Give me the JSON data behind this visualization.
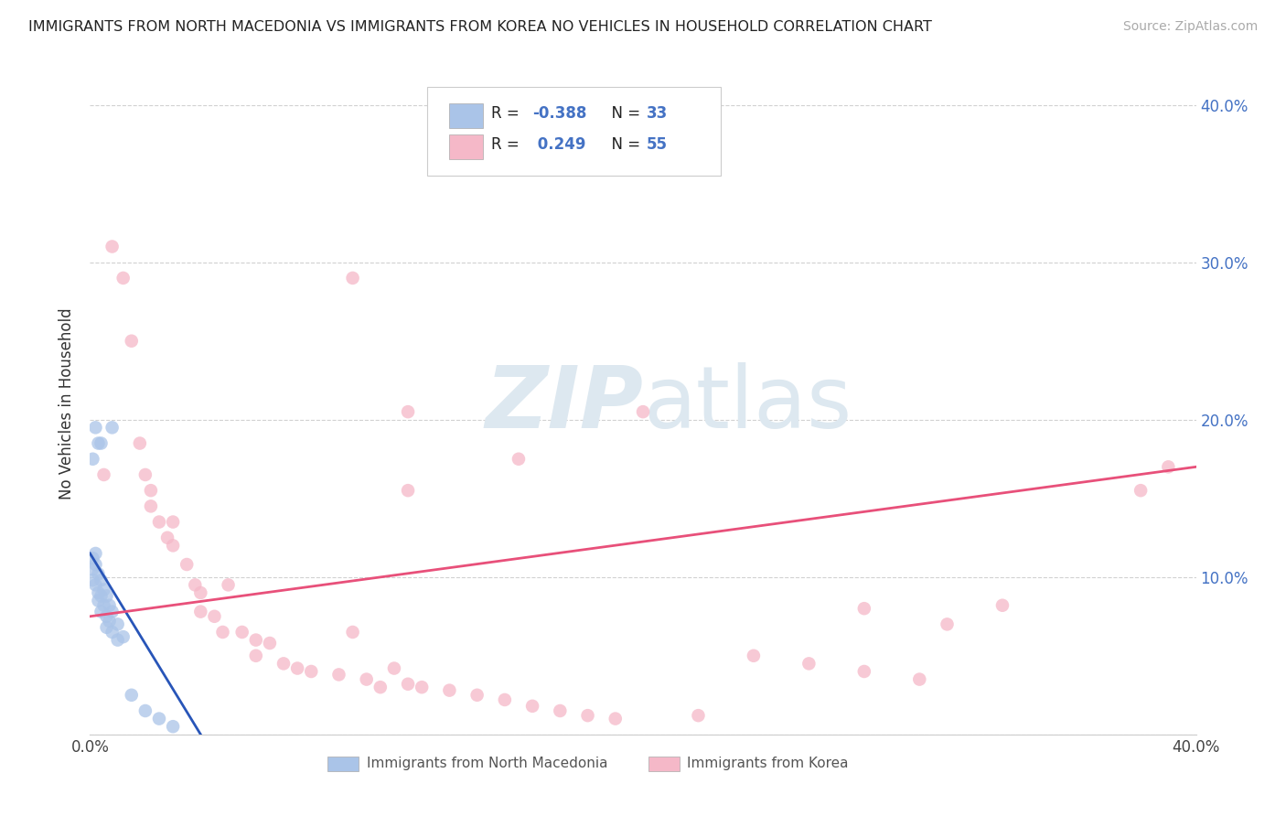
{
  "title": "IMMIGRANTS FROM NORTH MACEDONIA VS IMMIGRANTS FROM KOREA NO VEHICLES IN HOUSEHOLD CORRELATION CHART",
  "source": "Source: ZipAtlas.com",
  "ylabel": "No Vehicles in Household",
  "xlim": [
    0.0,
    0.4
  ],
  "ylim": [
    0.0,
    0.42
  ],
  "yticks": [
    0.0,
    0.1,
    0.2,
    0.3,
    0.4
  ],
  "ytick_labels_right": [
    "",
    "10.0%",
    "20.0%",
    "30.0%",
    "40.0%"
  ],
  "xticks": [
    0.0,
    0.1,
    0.2,
    0.3,
    0.4
  ],
  "xtick_labels": [
    "0.0%",
    "",
    "",
    "",
    "40.0%"
  ],
  "legend_r_blue": "R = -0.388",
  "legend_n_blue": "N = 33",
  "legend_r_pink": "R =  0.249",
  "legend_n_pink": "N = 55",
  "blue_fill_color": "#aac4e8",
  "pink_fill_color": "#f5b8c8",
  "blue_line_color": "#2855b8",
  "pink_line_color": "#e8507a",
  "legend_text_color": "#4472c4",
  "watermark_color": "#dde8f0",
  "blue_scatter": [
    [
      0.001,
      0.112
    ],
    [
      0.001,
      0.105
    ],
    [
      0.001,
      0.098
    ],
    [
      0.002,
      0.115
    ],
    [
      0.002,
      0.108
    ],
    [
      0.002,
      0.095
    ],
    [
      0.003,
      0.102
    ],
    [
      0.003,
      0.09
    ],
    [
      0.003,
      0.085
    ],
    [
      0.004,
      0.098
    ],
    [
      0.004,
      0.088
    ],
    [
      0.004,
      0.078
    ],
    [
      0.005,
      0.092
    ],
    [
      0.005,
      0.082
    ],
    [
      0.006,
      0.088
    ],
    [
      0.006,
      0.075
    ],
    [
      0.006,
      0.068
    ],
    [
      0.007,
      0.082
    ],
    [
      0.007,
      0.072
    ],
    [
      0.008,
      0.078
    ],
    [
      0.008,
      0.065
    ],
    [
      0.01,
      0.07
    ],
    [
      0.01,
      0.06
    ],
    [
      0.012,
      0.062
    ],
    [
      0.002,
      0.195
    ],
    [
      0.003,
      0.185
    ],
    [
      0.001,
      0.175
    ],
    [
      0.015,
      0.025
    ],
    [
      0.02,
      0.015
    ],
    [
      0.008,
      0.195
    ],
    [
      0.025,
      0.01
    ],
    [
      0.03,
      0.005
    ],
    [
      0.004,
      0.185
    ]
  ],
  "pink_scatter": [
    [
      0.005,
      0.165
    ],
    [
      0.008,
      0.31
    ],
    [
      0.012,
      0.29
    ],
    [
      0.015,
      0.25
    ],
    [
      0.018,
      0.185
    ],
    [
      0.02,
      0.165
    ],
    [
      0.022,
      0.155
    ],
    [
      0.022,
      0.145
    ],
    [
      0.025,
      0.135
    ],
    [
      0.028,
      0.125
    ],
    [
      0.03,
      0.135
    ],
    [
      0.03,
      0.12
    ],
    [
      0.035,
      0.108
    ],
    [
      0.038,
      0.095
    ],
    [
      0.04,
      0.09
    ],
    [
      0.04,
      0.078
    ],
    [
      0.045,
      0.075
    ],
    [
      0.048,
      0.065
    ],
    [
      0.05,
      0.095
    ],
    [
      0.055,
      0.065
    ],
    [
      0.06,
      0.06
    ],
    [
      0.06,
      0.05
    ],
    [
      0.065,
      0.058
    ],
    [
      0.07,
      0.045
    ],
    [
      0.075,
      0.042
    ],
    [
      0.08,
      0.04
    ],
    [
      0.09,
      0.038
    ],
    [
      0.095,
      0.065
    ],
    [
      0.1,
      0.035
    ],
    [
      0.105,
      0.03
    ],
    [
      0.11,
      0.042
    ],
    [
      0.115,
      0.032
    ],
    [
      0.12,
      0.03
    ],
    [
      0.13,
      0.028
    ],
    [
      0.14,
      0.025
    ],
    [
      0.15,
      0.022
    ],
    [
      0.16,
      0.018
    ],
    [
      0.17,
      0.015
    ],
    [
      0.18,
      0.012
    ],
    [
      0.19,
      0.01
    ],
    [
      0.2,
      0.205
    ],
    [
      0.22,
      0.012
    ],
    [
      0.24,
      0.05
    ],
    [
      0.26,
      0.045
    ],
    [
      0.28,
      0.04
    ],
    [
      0.3,
      0.035
    ],
    [
      0.31,
      0.07
    ],
    [
      0.115,
      0.205
    ],
    [
      0.115,
      0.155
    ],
    [
      0.38,
      0.155
    ],
    [
      0.39,
      0.17
    ],
    [
      0.095,
      0.29
    ],
    [
      0.155,
      0.175
    ],
    [
      0.28,
      0.08
    ],
    [
      0.33,
      0.082
    ]
  ],
  "blue_line_x": [
    0.0,
    0.04
  ],
  "blue_line_y": [
    0.115,
    0.0
  ],
  "pink_line_x": [
    0.0,
    0.4
  ],
  "pink_line_y": [
    0.075,
    0.17
  ]
}
